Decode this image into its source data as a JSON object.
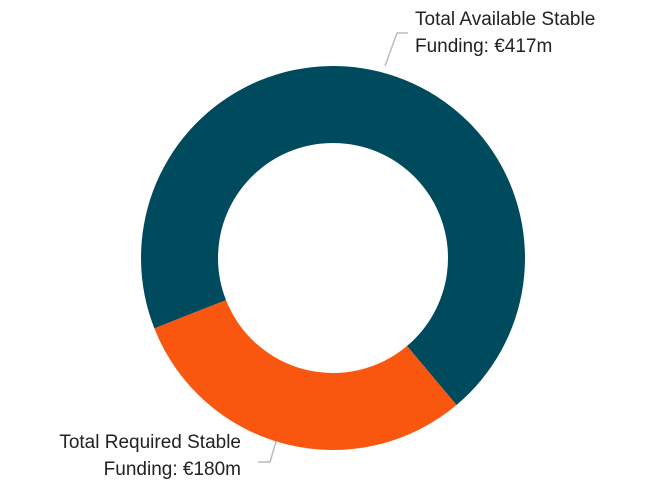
{
  "chart_data": {
    "type": "donut",
    "categories": [
      "Total Available Stable Funding",
      "Total Required Stable Funding"
    ],
    "values": [
      417,
      180
    ],
    "value_labels": [
      [
        "Total Available Stable",
        "Funding: €417m"
      ],
      [
        "Total Required Stable",
        "Funding: €180m"
      ]
    ],
    "colors": [
      "#004a5e",
      "#f9560f"
    ]
  }
}
